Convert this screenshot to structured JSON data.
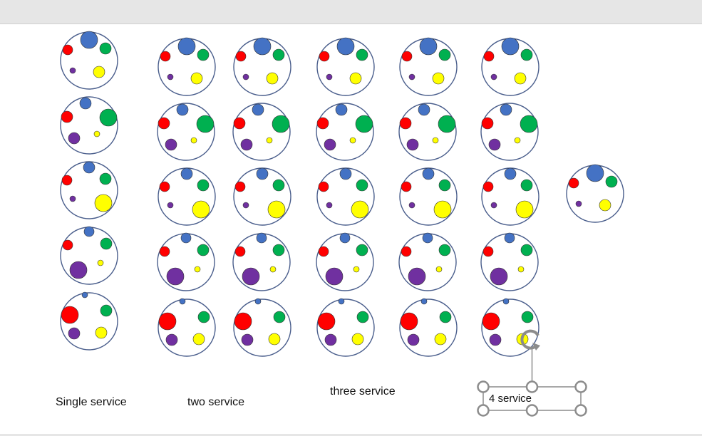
{
  "window": {
    "title": ""
  },
  "labels": {
    "single": "Single service",
    "two": "two service",
    "three": "three service",
    "four": "4 service"
  },
  "colors": {
    "outline": "#4a5e8c",
    "blue": "#4472c4",
    "red": "#ff0000",
    "green": "#00b050",
    "yellow": "#ffff00",
    "purple": "#7030a0",
    "selection": "#8c8c8c"
  },
  "icons": {
    "rotate_handle": "rotate-icon",
    "selection_handles": "resize-handle"
  },
  "dot_patterns": [
    "large-blue",
    "large-green",
    "large-yellow",
    "large-purple",
    "large-red"
  ],
  "extra_pattern": "large-blue",
  "columns": [
    "single",
    "two",
    "two",
    "three",
    "three",
    "four"
  ]
}
